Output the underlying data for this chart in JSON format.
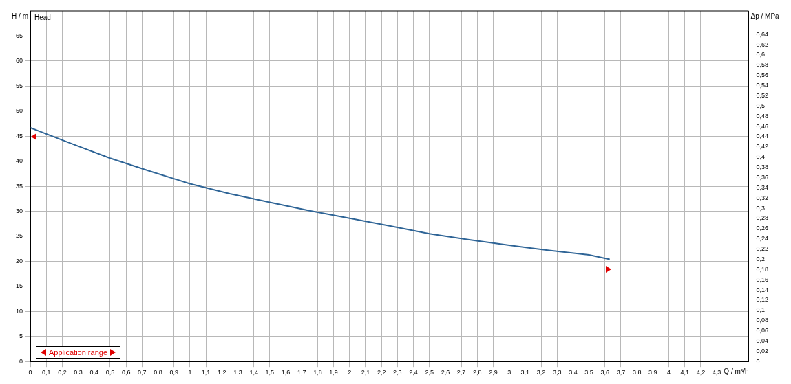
{
  "chart_data": {
    "type": "line",
    "xlabel": "Q / m³/h",
    "ylabel": "H / m",
    "y2label": "Δp / MPa",
    "annotations": [
      "Head",
      "Application range"
    ],
    "x": [
      0,
      0.25,
      0.5,
      0.75,
      1,
      1.25,
      1.5,
      1.75,
      2,
      2.25,
      2.5,
      2.75,
      3,
      3.25,
      3.5,
      3.63
    ],
    "series": [
      {
        "color": "#2e6496",
        "values": [
          46.7,
          43.6,
          40.6,
          38.0,
          35.5,
          33.5,
          31.8,
          30.1,
          28.6,
          27.1,
          25.5,
          24.3,
          23.2,
          22.2,
          21.3,
          20.4
        ]
      }
    ],
    "xlim": [
      0,
      4.5
    ],
    "ylim": [
      0,
      70
    ],
    "y2lim": [
      0,
      0.686
    ],
    "xticks": [
      0,
      {
        "value": 0.1,
        "label": "0,1"
      },
      {
        "value": 0.2,
        "label": "0,2"
      },
      {
        "value": 0.3,
        "label": "0,3"
      },
      {
        "value": 0.4,
        "label": "0,4"
      },
      {
        "value": 0.5,
        "label": "0,5"
      },
      {
        "value": 0.6,
        "label": "0,6"
      },
      {
        "value": 0.7,
        "label": "0,7"
      },
      {
        "value": 0.8,
        "label": "0,8"
      },
      {
        "value": 0.9,
        "label": "0,9"
      },
      1,
      {
        "value": 1.1,
        "label": "1,1"
      },
      {
        "value": 1.2,
        "label": "1,2"
      },
      {
        "value": 1.3,
        "label": "1,3"
      },
      {
        "value": 1.4,
        "label": "1,4"
      },
      {
        "value": 1.5,
        "label": "1,5"
      },
      {
        "value": 1.6,
        "label": "1,6"
      },
      {
        "value": 1.7,
        "label": "1,7"
      },
      {
        "value": 1.8,
        "label": "1,8"
      },
      {
        "value": 1.9,
        "label": "1,9"
      },
      2,
      {
        "value": 2.1,
        "label": "2,1"
      },
      {
        "value": 2.2,
        "label": "2,2"
      },
      {
        "value": 2.3,
        "label": "2,3"
      },
      {
        "value": 2.4,
        "label": "2,4"
      },
      {
        "value": 2.5,
        "label": "2,5"
      },
      {
        "value": 2.6,
        "label": "2,6"
      },
      {
        "value": 2.7,
        "label": "2,7"
      },
      {
        "value": 2.8,
        "label": "2,8"
      },
      {
        "value": 2.9,
        "label": "2,9"
      },
      3,
      {
        "value": 3.1,
        "label": "3,1"
      },
      {
        "value": 3.2,
        "label": "3,2"
      },
      {
        "value": 3.3,
        "label": "3,3"
      },
      {
        "value": 3.4,
        "label": "3,4"
      },
      {
        "value": 3.5,
        "label": "3,5"
      },
      {
        "value": 3.6,
        "label": "3,6"
      },
      {
        "value": 3.7,
        "label": "3,7"
      },
      {
        "value": 3.8,
        "label": "3,8"
      },
      {
        "value": 3.9,
        "label": "3,9"
      },
      4,
      {
        "value": 4.1,
        "label": "4,1"
      },
      {
        "value": 4.2,
        "label": "4,2"
      },
      {
        "value": 4.3,
        "label": "4,3"
      }
    ],
    "yticks": [
      0,
      5,
      10,
      15,
      20,
      25,
      30,
      35,
      40,
      45,
      50,
      55,
      60,
      65
    ],
    "y2ticks": [
      0,
      {
        "value": 0.02,
        "label": "0,02"
      },
      {
        "value": 0.04,
        "label": "0,04"
      },
      {
        "value": 0.06,
        "label": "0,06"
      },
      {
        "value": 0.08,
        "label": "0,08"
      },
      {
        "value": 0.1,
        "label": "0,1"
      },
      {
        "value": 0.12,
        "label": "0,12"
      },
      {
        "value": 0.14,
        "label": "0,14"
      },
      {
        "value": 0.16,
        "label": "0,16"
      },
      {
        "value": 0.18,
        "label": "0,18"
      },
      {
        "value": 0.2,
        "label": "0,2"
      },
      {
        "value": 0.22,
        "label": "0,22"
      },
      {
        "value": 0.24,
        "label": "0,24"
      },
      {
        "value": 0.26,
        "label": "0,26"
      },
      {
        "value": 0.28,
        "label": "0,28"
      },
      {
        "value": 0.3,
        "label": "0,3"
      },
      {
        "value": 0.32,
        "label": "0,32"
      },
      {
        "value": 0.34,
        "label": "0,34"
      },
      {
        "value": 0.36,
        "label": "0,36"
      },
      {
        "value": 0.38,
        "label": "0,38"
      },
      {
        "value": 0.4,
        "label": "0,4"
      },
      {
        "value": 0.42,
        "label": "0,42"
      },
      {
        "value": 0.44,
        "label": "0,44"
      },
      {
        "value": 0.46,
        "label": "0,46"
      },
      {
        "value": 0.48,
        "label": "0,48"
      },
      {
        "value": 0.5,
        "label": "0,5"
      },
      {
        "value": 0.52,
        "label": "0,52"
      },
      {
        "value": 0.54,
        "label": "0,54"
      },
      {
        "value": 0.56,
        "label": "0,56"
      },
      {
        "value": 0.58,
        "label": "0,58"
      },
      {
        "value": 0.6,
        "label": "0,6"
      },
      {
        "value": 0.62,
        "label": "0,62"
      },
      {
        "value": 0.64,
        "label": "0,64"
      }
    ],
    "grid": true,
    "legend": false,
    "marker": "none",
    "line_style": "solid"
  }
}
